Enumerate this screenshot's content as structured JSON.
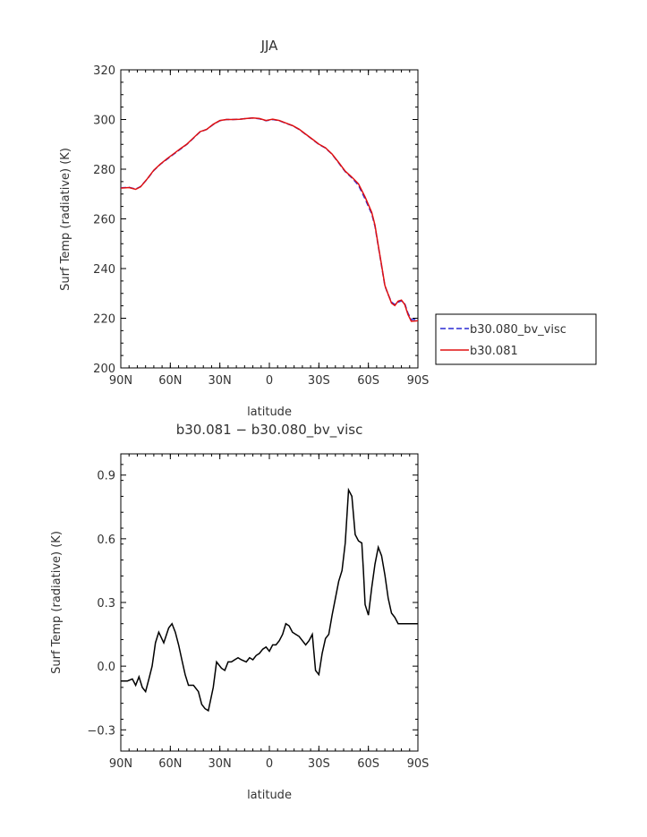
{
  "chart_data": [
    {
      "type": "line",
      "title": "JJA",
      "xlabel": "latitude",
      "ylabel": "Surf Temp (radiative) (K)",
      "xlim": [
        90,
        -90
      ],
      "ylim": [
        200,
        320
      ],
      "xticks": [
        90,
        60,
        30,
        0,
        -30,
        -60,
        -90
      ],
      "xtick_labels": [
        "90N",
        "60N",
        "30N",
        "0",
        "30S",
        "60S",
        "90S"
      ],
      "yticks": [
        200,
        220,
        240,
        260,
        280,
        300,
        320
      ],
      "ytick_labels": [
        "200",
        "220",
        "240",
        "260",
        "280",
        "300",
        "320"
      ],
      "legend_position": "right",
      "series": [
        {
          "name": "b30.080_bv_visc",
          "color": "#2a2ad4",
          "style": "dashed",
          "x": [
            90,
            85,
            81,
            78,
            74,
            70,
            66,
            62,
            58,
            54,
            50,
            46,
            42,
            38,
            34,
            30,
            26,
            22,
            18,
            14,
            10,
            6,
            2,
            -2,
            -6,
            -10,
            -14,
            -18,
            -22,
            -26,
            -30,
            -34,
            -38,
            -42,
            -46,
            -50,
            -54,
            -58,
            -62,
            -64,
            -66,
            -68,
            -70,
            -72,
            -74,
            -76,
            -78,
            -80,
            -82,
            -84,
            -86,
            -88,
            -90
          ],
          "y": [
            272.5,
            272.7,
            272,
            273,
            276,
            279.5,
            282,
            284,
            286,
            288,
            290,
            292.5,
            295,
            296,
            298,
            299.5,
            300,
            300,
            300.1,
            300.4,
            300.6,
            300.3,
            299.5,
            300,
            299.5,
            298.5,
            297.5,
            296,
            294,
            292,
            290,
            288.5,
            286,
            282.5,
            279,
            276.5,
            273.5,
            268,
            262,
            257,
            249,
            241,
            233,
            229.5,
            226.5,
            225.5,
            226.5,
            227,
            226,
            222,
            219.5,
            219.5,
            219.5
          ]
        },
        {
          "name": "b30.081",
          "color": "#e01010",
          "style": "solid",
          "x": [
            90,
            85,
            81,
            78,
            74,
            70,
            66,
            62,
            58,
            54,
            50,
            46,
            42,
            38,
            34,
            30,
            26,
            22,
            18,
            14,
            10,
            6,
            2,
            -2,
            -6,
            -10,
            -14,
            -18,
            -22,
            -26,
            -30,
            -34,
            -38,
            -42,
            -46,
            -50,
            -54,
            -58,
            -62,
            -64,
            -66,
            -68,
            -70,
            -72,
            -74,
            -76,
            -78,
            -80,
            -82,
            -84,
            -86,
            -88,
            -90
          ],
          "y": [
            272.4,
            272.6,
            271.9,
            272.9,
            276.1,
            279.6,
            282.1,
            284.2,
            286.2,
            288.2,
            290.1,
            292.6,
            295.1,
            296,
            298.1,
            299.6,
            300,
            300,
            300.1,
            300.4,
            300.6,
            300.4,
            299.6,
            300.1,
            299.6,
            298.6,
            297.6,
            296.1,
            294.1,
            292.1,
            290.1,
            288.6,
            286.1,
            282.7,
            279.2,
            276.8,
            274.1,
            268.8,
            262.6,
            257.5,
            249.3,
            241.4,
            233.2,
            229.6,
            226.1,
            225.1,
            226.9,
            227.3,
            225.6,
            221.5,
            218.8,
            218.9,
            219
          ]
        }
      ]
    },
    {
      "type": "line",
      "title": "b30.081 − b30.080_bv_visc",
      "xlabel": "latitude",
      "ylabel": "Surf Temp (radiative) (K)",
      "xlim": [
        90,
        -90
      ],
      "ylim": [
        -0.4,
        1.0
      ],
      "xticks": [
        90,
        60,
        30,
        0,
        -30,
        -60,
        -90
      ],
      "xtick_labels": [
        "90N",
        "60N",
        "30N",
        "0",
        "30S",
        "60S",
        "90S"
      ],
      "yticks": [
        -0.3,
        0.0,
        0.3,
        0.6,
        0.9
      ],
      "ytick_labels": [
        "−0.3",
        "0.0",
        "0.3",
        "0.6",
        "0.9"
      ],
      "series": [
        {
          "color": "#000000",
          "style": "solid",
          "x": [
            90,
            86,
            83,
            81,
            79,
            77,
            75,
            73,
            71,
            69,
            67,
            64,
            61,
            59,
            57,
            55,
            53,
            51,
            49,
            46,
            43,
            41,
            39,
            37,
            34,
            32,
            29,
            27,
            25,
            23,
            21,
            19,
            17,
            14,
            12,
            10,
            8,
            6,
            4,
            2,
            0,
            -2,
            -4,
            -6,
            -8,
            -10,
            -12,
            -14,
            -16,
            -18,
            -20,
            -22,
            -24,
            -26,
            -28,
            -30,
            -32,
            -34,
            -36,
            -38,
            -40,
            -42,
            -44,
            -46,
            -48,
            -50,
            -52,
            -54,
            -56,
            -57,
            -58,
            -60,
            -62,
            -64,
            -66,
            -68,
            -70,
            -72,
            -74,
            -76,
            -78,
            -80,
            -82,
            -84,
            -86,
            -88,
            -90
          ],
          "y": [
            -0.07,
            -0.07,
            -0.06,
            -0.09,
            -0.05,
            -0.1,
            -0.12,
            -0.06,
            0.0,
            0.11,
            0.16,
            0.11,
            0.18,
            0.2,
            0.16,
            0.1,
            0.03,
            -0.04,
            -0.09,
            -0.09,
            -0.12,
            -0.18,
            -0.2,
            -0.21,
            -0.1,
            0.02,
            -0.01,
            -0.02,
            0.02,
            0.02,
            0.03,
            0.04,
            0.03,
            0.02,
            0.04,
            0.03,
            0.05,
            0.06,
            0.08,
            0.09,
            0.07,
            0.1,
            0.1,
            0.12,
            0.15,
            0.2,
            0.19,
            0.16,
            0.15,
            0.14,
            0.12,
            0.1,
            0.12,
            0.15,
            -0.02,
            -0.04,
            0.06,
            0.13,
            0.15,
            0.24,
            0.32,
            0.4,
            0.45,
            0.58,
            0.83,
            0.8,
            0.62,
            0.59,
            0.58,
            0.45,
            0.29,
            0.24,
            0.37,
            0.48,
            0.56,
            0.52,
            0.43,
            0.32,
            0.25,
            0.23,
            0.2,
            0.2,
            0.2,
            0.2,
            0.2,
            0.2,
            0.2
          ]
        }
      ]
    }
  ]
}
